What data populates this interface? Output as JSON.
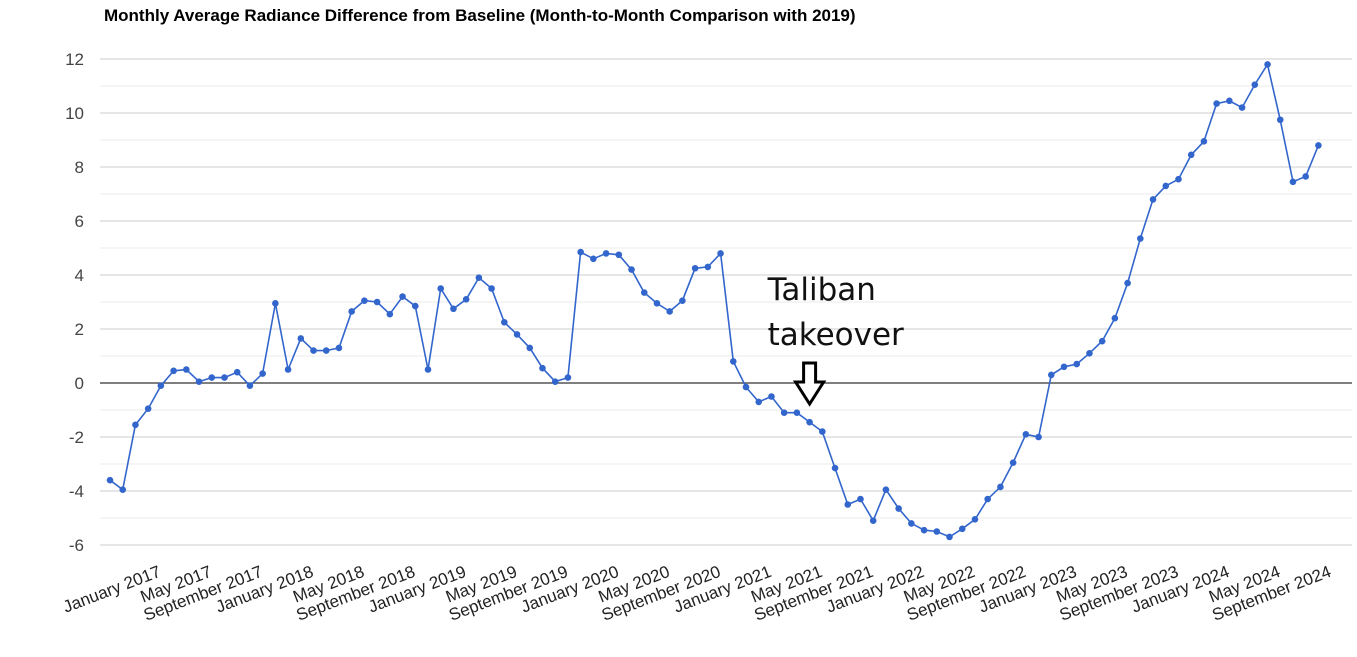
{
  "chart_data": {
    "type": "line",
    "title": "Monthly Average Radiance Difference from Baseline (Month-to-Month Comparison with 2019)",
    "xlabel": "",
    "ylabel": "",
    "ylim": [
      -6,
      12
    ],
    "yticks": [
      "12",
      "10",
      "8",
      "6",
      "4",
      "2",
      "0",
      "-2",
      "-4",
      "-6"
    ],
    "x_tick_labels": [
      "January 2017",
      "May 2017",
      "September 2017",
      "January 2018",
      "May 2018",
      "September 2018",
      "January 2019",
      "May 2019",
      "September 2019",
      "January 2020",
      "May 2020",
      "September 2020",
      "January 2021",
      "May 2021",
      "September 2021",
      "January 2022",
      "May 2022",
      "September 2022",
      "January 2023",
      "May 2023",
      "September 2023",
      "January 2024",
      "May 2024",
      "September 2024"
    ],
    "x_start": "January 2017",
    "x_end": "December 2024",
    "grid": true,
    "zero_line": true,
    "series_color": "#3366cc",
    "values": [
      -3.6,
      -3.95,
      -1.55,
      -0.95,
      -0.1,
      0.45,
      0.5,
      0.05,
      0.2,
      0.2,
      0.4,
      -0.1,
      0.35,
      2.95,
      0.5,
      1.65,
      1.2,
      1.2,
      1.3,
      2.65,
      3.05,
      3.0,
      2.55,
      3.2,
      2.85,
      0.5,
      3.5,
      2.75,
      3.1,
      3.9,
      3.5,
      2.25,
      1.8,
      1.3,
      0.55,
      0.05,
      0.2,
      4.85,
      4.6,
      4.8,
      4.75,
      4.2,
      3.35,
      2.95,
      2.65,
      3.05,
      4.25,
      4.3,
      4.8,
      0.8,
      -0.15,
      -0.7,
      -0.5,
      -1.1,
      -1.1,
      -1.45,
      -1.8,
      -3.15,
      -4.5,
      -4.3,
      -5.1,
      -3.95,
      -4.65,
      -5.2,
      -5.45,
      -5.5,
      -5.7,
      -5.4,
      -5.05,
      -4.3,
      -3.85,
      -2.95,
      -1.9,
      -2.0,
      0.3,
      0.6,
      0.7,
      1.1,
      1.55,
      2.4,
      3.7,
      5.35,
      6.8,
      7.3,
      7.55,
      8.45,
      8.95,
      10.35,
      10.45,
      10.2,
      11.05,
      11.8,
      9.75,
      7.45,
      7.65,
      8.8
    ],
    "annotation": {
      "line1": "Taliban",
      "line2": "takeover",
      "target_month_index": 55
    }
  }
}
